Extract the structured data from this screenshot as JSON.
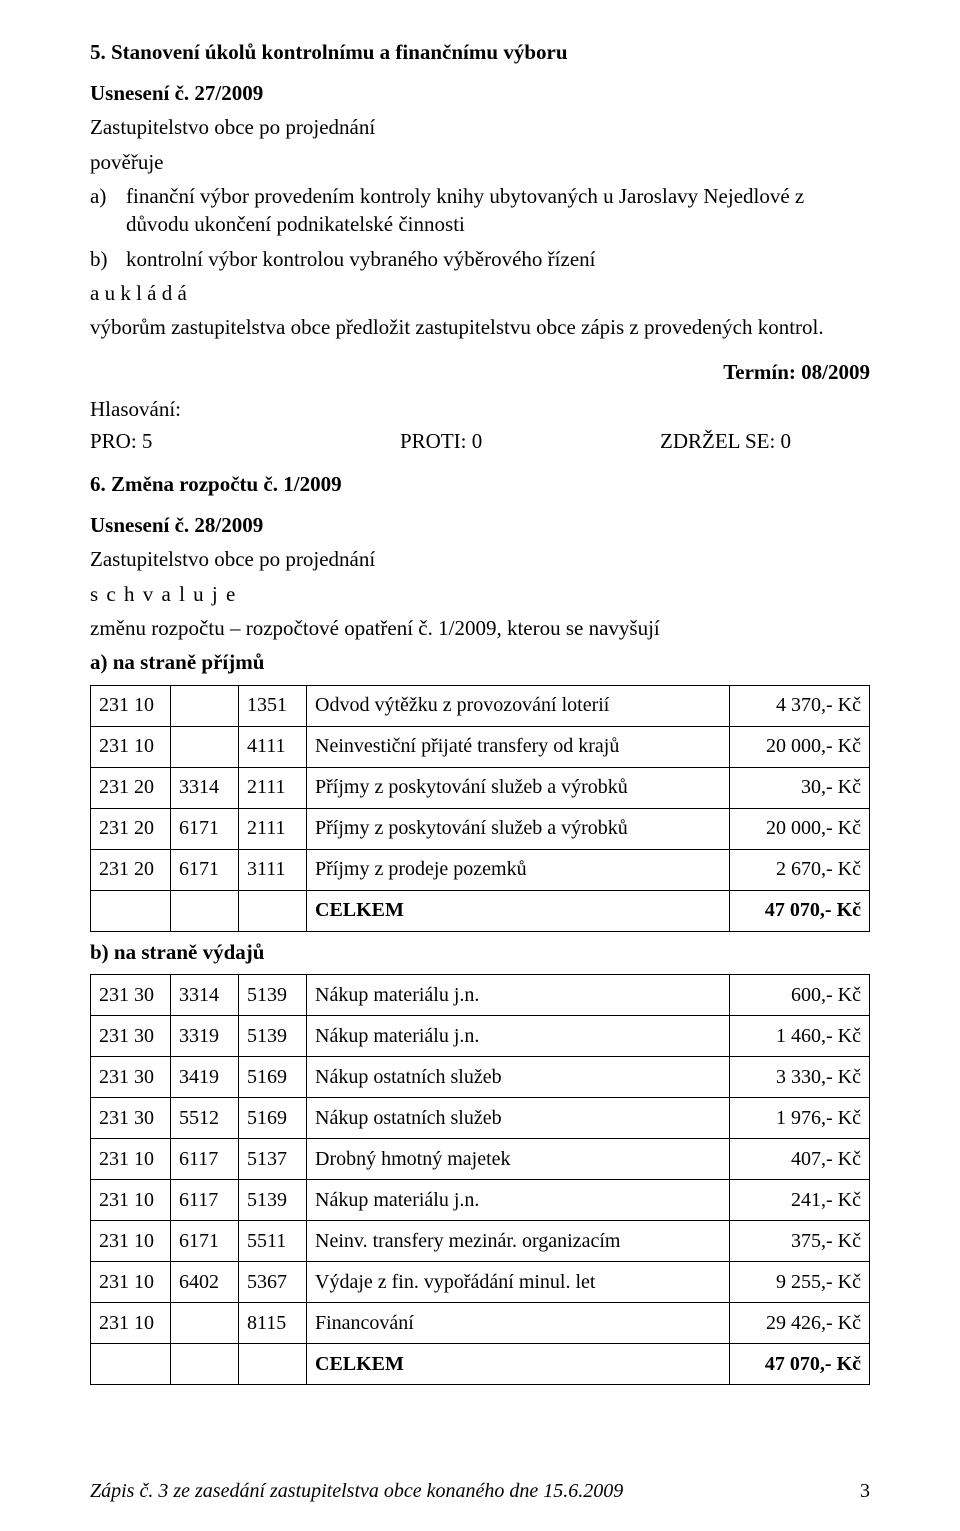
{
  "section5": {
    "heading": "5.  Stanovení úkolů kontrolnímu a finančnímu výboru",
    "usneseni": "Usnesení č. 27/2009",
    "body1": "Zastupitelstvo obce po projednání",
    "poveruje": "pověřuje",
    "items": [
      {
        "marker": "a)",
        "text": "finanční výbor provedením kontroly knihy ubytovaných u Jaroslavy Nejedlové z důvodu ukončení podnikatelské činnosti"
      },
      {
        "marker": "b)",
        "text": "kontrolní výbor kontrolou vybraného výběrového řízení"
      }
    ],
    "uklada": "a  u k l á d á",
    "uklada_text": "výborům zastupitelstva obce předložit zastupitelstvu obce zápis z provedených kontrol.",
    "termin": "Termín: 08/2009",
    "hlasovani_label": "Hlasování:",
    "pro": "PRO: 5",
    "proti": "PROTI: 0",
    "zdrzel": "ZDRŽEL SE: 0"
  },
  "section6": {
    "heading": "6. Změna rozpočtu č. 1/2009",
    "usneseni": "Usnesení č. 28/2009",
    "body1": "Zastupitelstvo obce po projednání",
    "schvaluje": "s c h v a l u j e",
    "zmenu": "změnu rozpočtu – rozpočtové opatření č. 1/2009, kterou se navyšují",
    "prijmy_heading": "a)  na straně příjmů",
    "vydaje_heading": "b)  na straně výdajů",
    "prijmy_rows": [
      [
        "231 10",
        "",
        "1351",
        "Odvod výtěžku z provozování loterií",
        "4 370,- Kč"
      ],
      [
        "231 10",
        "",
        "4111",
        "Neinvestiční přijaté transfery od krajů",
        "20 000,- Kč"
      ],
      [
        "231 20",
        "3314",
        "2111",
        "Příjmy z poskytování služeb a výrobků",
        "30,- Kč"
      ],
      [
        "231 20",
        "6171",
        "2111",
        "Příjmy z poskytování služeb a výrobků",
        "20 000,- Kč"
      ],
      [
        "231 20",
        "6171",
        "3111",
        "Příjmy z prodeje pozemků",
        "2 670,- Kč"
      ]
    ],
    "prijmy_total": [
      "",
      "",
      "",
      "CELKEM",
      "47 070,- Kč"
    ],
    "vydaje_rows": [
      [
        "231 30",
        "3314",
        "5139",
        "Nákup materiálu j.n.",
        "600,- Kč"
      ],
      [
        "231 30",
        "3319",
        "5139",
        "Nákup materiálu j.n.",
        "1 460,- Kč"
      ],
      [
        "231 30",
        "3419",
        "5169",
        "Nákup ostatních služeb",
        "3 330,- Kč"
      ],
      [
        "231 30",
        "5512",
        "5169",
        "Nákup ostatních služeb",
        "1 976,- Kč"
      ],
      [
        "231 10",
        "6117",
        "5137",
        "Drobný hmotný majetek",
        "407,- Kč"
      ],
      [
        "231 10",
        "6117",
        "5139",
        "Nákup materiálu j.n.",
        "241,- Kč"
      ],
      [
        "231 10",
        "6171",
        "5511",
        "Neinv. transfery mezinár. organizacím",
        "375,- Kč"
      ],
      [
        "231 10",
        "6402",
        "5367",
        "Výdaje z fin. vypořádání minul. let",
        "9 255,- Kč"
      ],
      [
        "231 10",
        "",
        "8115",
        "Financování",
        "29 426,- Kč"
      ]
    ],
    "vydaje_total": [
      "",
      "",
      "",
      "CELKEM",
      "47 070,- Kč"
    ]
  },
  "footer": {
    "text": "Zápis č. 3 ze zasedání zastupitelstva obce konaného dne 15.6.2009",
    "page": "3"
  }
}
